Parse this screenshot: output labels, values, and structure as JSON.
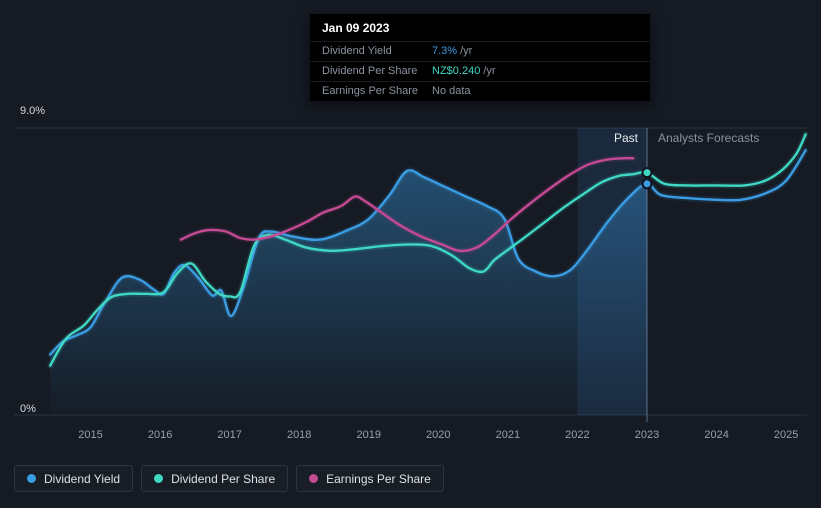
{
  "colors": {
    "background": "#151a23",
    "gridline": "#2a3240",
    "accent_blue": "#3a9de4",
    "accent_teal": "#3fd8c4",
    "accent_magenta": "#c34a93",
    "text_muted": "#8b93a0",
    "text_light": "#e4e7eb",
    "past_band_fill": "rgba(62,130,200,0.15)",
    "divider_line": "rgba(140,170,205,0.6)"
  },
  "tooltip": {
    "date": "Jan 09 2023",
    "rows": [
      {
        "label": "Dividend Yield",
        "value": "7.3%",
        "suffix": "/yr",
        "value_color": "#3a9de4"
      },
      {
        "label": "Dividend Per Share",
        "value": "NZ$0.240",
        "suffix": "/yr",
        "value_color": "#3fd8c4"
      },
      {
        "label": "Earnings Per Share",
        "value": "No data",
        "suffix": "",
        "value_color": "#8b93a0"
      }
    ]
  },
  "legend": [
    {
      "label": "Dividend Yield",
      "color": "#3a9de4"
    },
    {
      "label": "Dividend Per Share",
      "color": "#3fd8c4"
    },
    {
      "label": "Earnings Per Share",
      "color": "#c34a93"
    }
  ],
  "chart_data": {
    "type": "line",
    "unit": "percent",
    "xlim": [
      2013.9,
      2025.3
    ],
    "ylim": [
      0,
      9.0
    ],
    "x_ticks": [
      2015,
      2016,
      2017,
      2018,
      2019,
      2020,
      2021,
      2022,
      2023,
      2024,
      2025
    ],
    "y_axis": {
      "top_label": "9.0%",
      "bottom_label": "0%",
      "top_value": 9.0,
      "bottom_value": 0
    },
    "divider_x": 2023.0,
    "past_band": [
      2022.0,
      2023.0
    ],
    "regions": {
      "past_label": "Past",
      "forecast_label": "Analysts Forecasts"
    },
    "legend_position": "bottom-left",
    "grid": "horizontal-top-bottom-only",
    "series": [
      {
        "name": "Dividend Yield",
        "color": "#3a9de4",
        "area": true,
        "x": [
          2014.42,
          2014.6,
          2014.8,
          2015.0,
          2015.2,
          2015.45,
          2015.7,
          2015.9,
          2016.05,
          2016.2,
          2016.35,
          2016.55,
          2016.75,
          2016.88,
          2017.02,
          2017.2,
          2017.42,
          2017.6,
          2017.9,
          2018.3,
          2018.7,
          2019.0,
          2019.3,
          2019.55,
          2019.8,
          2020.1,
          2020.4,
          2020.7,
          2020.95,
          2021.15,
          2021.4,
          2021.65,
          2021.9,
          2022.15,
          2022.45,
          2022.75,
          2023.0,
          2023.2,
          2023.6,
          2024.0,
          2024.35,
          2024.7,
          2025.0,
          2025.28
        ],
        "y": [
          1.9,
          2.3,
          2.5,
          2.75,
          3.5,
          4.3,
          4.25,
          3.95,
          3.8,
          4.45,
          4.7,
          4.3,
          3.75,
          3.9,
          3.1,
          4.0,
          5.55,
          5.75,
          5.6,
          5.5,
          5.8,
          6.15,
          6.9,
          7.65,
          7.45,
          7.15,
          6.85,
          6.55,
          6.15,
          4.9,
          4.5,
          4.35,
          4.55,
          5.2,
          6.1,
          6.85,
          7.25,
          6.9,
          6.8,
          6.75,
          6.75,
          6.95,
          7.35,
          8.3
        ]
      },
      {
        "name": "Dividend Per Share",
        "color": "#3fd8c4",
        "area": false,
        "x": [
          2014.42,
          2014.65,
          2014.9,
          2015.1,
          2015.3,
          2015.55,
          2015.8,
          2016.05,
          2016.25,
          2016.45,
          2016.65,
          2016.85,
          2017.0,
          2017.15,
          2017.35,
          2017.55,
          2017.8,
          2018.1,
          2018.45,
          2018.8,
          2019.2,
          2019.6,
          2019.9,
          2020.2,
          2020.45,
          2020.65,
          2020.8,
          2020.95,
          2021.2,
          2021.5,
          2021.8,
          2022.1,
          2022.35,
          2022.6,
          2022.8,
          2023.0,
          2023.25,
          2023.6,
          2024.0,
          2024.4,
          2024.7,
          2024.95,
          2025.15,
          2025.28
        ],
        "y": [
          1.55,
          2.4,
          2.8,
          3.3,
          3.7,
          3.8,
          3.8,
          3.85,
          4.45,
          4.75,
          4.2,
          3.8,
          3.72,
          3.85,
          5.3,
          5.65,
          5.5,
          5.25,
          5.15,
          5.2,
          5.3,
          5.35,
          5.3,
          5.0,
          4.6,
          4.5,
          4.85,
          5.1,
          5.5,
          6.0,
          6.5,
          6.95,
          7.3,
          7.5,
          7.55,
          7.6,
          7.25,
          7.2,
          7.2,
          7.2,
          7.35,
          7.7,
          8.2,
          8.8
        ]
      },
      {
        "name": "Earnings Per Share",
        "color": "#c34a93",
        "area": false,
        "x": [
          2016.3,
          2016.5,
          2016.7,
          2016.95,
          2017.15,
          2017.35,
          2017.6,
          2017.85,
          2018.1,
          2018.35,
          2018.6,
          2018.8,
          2018.95,
          2019.15,
          2019.45,
          2019.75,
          2020.05,
          2020.3,
          2020.55,
          2020.8,
          2021.05,
          2021.3,
          2021.6,
          2021.9,
          2022.15,
          2022.4,
          2022.65,
          2022.8
        ],
        "y": [
          5.5,
          5.7,
          5.8,
          5.75,
          5.55,
          5.5,
          5.6,
          5.8,
          6.05,
          6.35,
          6.55,
          6.85,
          6.7,
          6.4,
          5.95,
          5.6,
          5.35,
          5.15,
          5.25,
          5.65,
          6.15,
          6.6,
          7.1,
          7.55,
          7.85,
          8.0,
          8.05,
          8.05
        ]
      }
    ],
    "markers": [
      {
        "series": "Dividend Yield",
        "x": 2023.0,
        "y": 7.25
      },
      {
        "series": "Dividend Per Share",
        "x": 2023.0,
        "y": 7.6
      }
    ]
  }
}
